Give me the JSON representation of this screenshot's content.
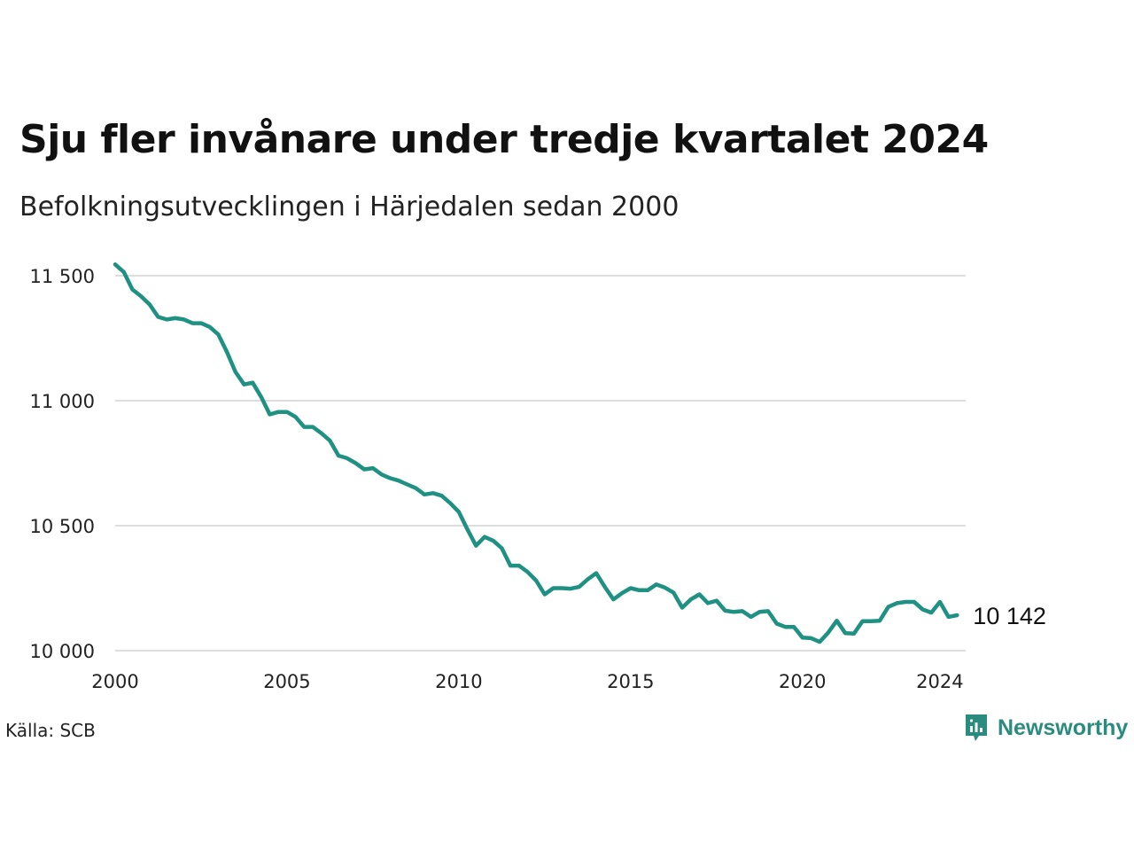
{
  "title": "Sju fler invånare under tredje kvartalet 2024",
  "subtitle": "Befolkningsutvecklingen i Härjedalen sedan 2000",
  "source": "Källa: SCB",
  "brand": {
    "name": "Newsworthy",
    "color": "#2a8c7e"
  },
  "colors": {
    "line": "#1f9183",
    "grid": "#dddddd"
  },
  "last_value_label": "10 142",
  "chart_data": {
    "type": "line",
    "x_unit": "year (quarterly)",
    "xlim": [
      2000,
      2024.75
    ],
    "ylim": [
      10000,
      11500
    ],
    "x_ticks": [
      2000,
      2005,
      2010,
      2015,
      2020,
      2024
    ],
    "x_tick_labels": [
      "2000",
      "2005",
      "2010",
      "2015",
      "2020",
      "2024"
    ],
    "y_ticks": [
      10000,
      10500,
      11000,
      11500
    ],
    "y_tick_labels": [
      "10 000",
      "10 500",
      "11 000",
      "11 500"
    ],
    "grid": true,
    "series": [
      {
        "values": [
          [
            2000.0,
            11545
          ],
          [
            2000.25,
            11515
          ],
          [
            2000.5,
            11445
          ],
          [
            2000.75,
            11418
          ],
          [
            2001.0,
            11385
          ],
          [
            2001.25,
            11335
          ],
          [
            2001.5,
            11325
          ],
          [
            2001.75,
            11330
          ],
          [
            2002.0,
            11325
          ],
          [
            2002.25,
            11310
          ],
          [
            2002.5,
            11310
          ],
          [
            2002.75,
            11295
          ],
          [
            2003.0,
            11265
          ],
          [
            2003.25,
            11195
          ],
          [
            2003.5,
            11115
          ],
          [
            2003.75,
            11065
          ],
          [
            2004.0,
            11072
          ],
          [
            2004.25,
            11015
          ],
          [
            2004.5,
            10945
          ],
          [
            2004.75,
            10955
          ],
          [
            2005.0,
            10955
          ],
          [
            2005.25,
            10935
          ],
          [
            2005.5,
            10895
          ],
          [
            2005.75,
            10895
          ],
          [
            2006.0,
            10870
          ],
          [
            2006.25,
            10840
          ],
          [
            2006.5,
            10780
          ],
          [
            2006.75,
            10770
          ],
          [
            2007.0,
            10750
          ],
          [
            2007.25,
            10725
          ],
          [
            2007.5,
            10730
          ],
          [
            2007.75,
            10705
          ],
          [
            2008.0,
            10690
          ],
          [
            2008.25,
            10680
          ],
          [
            2008.5,
            10665
          ],
          [
            2008.75,
            10650
          ],
          [
            2009.0,
            10625
          ],
          [
            2009.25,
            10630
          ],
          [
            2009.5,
            10620
          ],
          [
            2009.75,
            10590
          ],
          [
            2010.0,
            10555
          ],
          [
            2010.25,
            10485
          ],
          [
            2010.5,
            10420
          ],
          [
            2010.75,
            10455
          ],
          [
            2011.0,
            10440
          ],
          [
            2011.25,
            10410
          ],
          [
            2011.5,
            10340
          ],
          [
            2011.75,
            10340
          ],
          [
            2012.0,
            10315
          ],
          [
            2012.25,
            10280
          ],
          [
            2012.5,
            10225
          ],
          [
            2012.75,
            10250
          ],
          [
            2013.0,
            10250
          ],
          [
            2013.25,
            10248
          ],
          [
            2013.5,
            10255
          ],
          [
            2013.75,
            10285
          ],
          [
            2014.0,
            10310
          ],
          [
            2014.25,
            10255
          ],
          [
            2014.5,
            10205
          ],
          [
            2014.75,
            10230
          ],
          [
            2015.0,
            10250
          ],
          [
            2015.25,
            10242
          ],
          [
            2015.5,
            10242
          ],
          [
            2015.75,
            10265
          ],
          [
            2016.0,
            10252
          ],
          [
            2016.25,
            10232
          ],
          [
            2016.5,
            10172
          ],
          [
            2016.75,
            10205
          ],
          [
            2017.0,
            10225
          ],
          [
            2017.25,
            10190
          ],
          [
            2017.5,
            10200
          ],
          [
            2017.75,
            10160
          ],
          [
            2018.0,
            10155
          ],
          [
            2018.25,
            10158
          ],
          [
            2018.5,
            10135
          ],
          [
            2018.75,
            10155
          ],
          [
            2019.0,
            10158
          ],
          [
            2019.25,
            10108
          ],
          [
            2019.5,
            10095
          ],
          [
            2019.75,
            10095
          ],
          [
            2020.0,
            10052
          ],
          [
            2020.25,
            10050
          ],
          [
            2020.5,
            10035
          ],
          [
            2020.75,
            10072
          ],
          [
            2021.0,
            10120
          ],
          [
            2021.25,
            10070
          ],
          [
            2021.5,
            10068
          ],
          [
            2021.75,
            10118
          ],
          [
            2022.0,
            10118
          ],
          [
            2022.25,
            10120
          ],
          [
            2022.5,
            10175
          ],
          [
            2022.75,
            10190
          ],
          [
            2023.0,
            10195
          ],
          [
            2023.25,
            10195
          ],
          [
            2023.5,
            10165
          ],
          [
            2023.75,
            10152
          ],
          [
            2024.0,
            10195
          ],
          [
            2024.25,
            10135
          ],
          [
            2024.5,
            10142
          ]
        ]
      }
    ]
  }
}
